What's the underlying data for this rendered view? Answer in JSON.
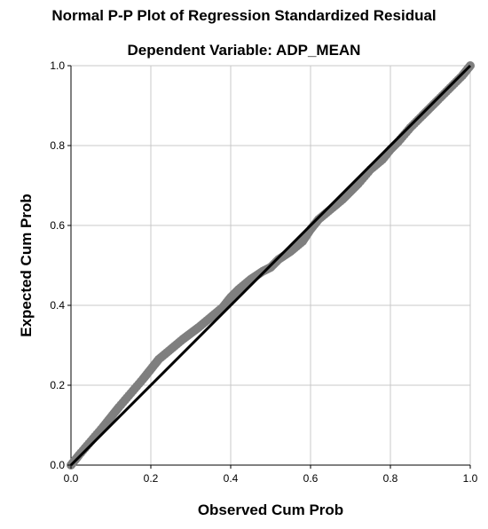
{
  "chart_data": {
    "type": "scatter",
    "title": "Normal P-P Plot of Regression Standardized Residual",
    "subtitle": "Dependent Variable: ADP_MEAN",
    "xlabel": "Observed Cum Prob",
    "ylabel": "Expected Cum Prob",
    "xlim": [
      0.0,
      1.0
    ],
    "ylim": [
      0.0,
      1.0
    ],
    "xticks": [
      "0.0",
      "0.2",
      "0.4",
      "0.6",
      "0.8",
      "1.0"
    ],
    "yticks": [
      "0.0",
      "0.2",
      "0.4",
      "0.6",
      "0.8",
      "1.0"
    ],
    "grid": true,
    "reference_line": {
      "x": [
        0.0,
        1.0
      ],
      "y": [
        0.0,
        1.0
      ]
    },
    "series": [
      {
        "x": [
          0.0,
          0.02,
          0.05,
          0.08,
          0.1,
          0.12,
          0.15,
          0.18,
          0.2,
          0.22,
          0.25,
          0.28,
          0.3,
          0.32,
          0.35,
          0.38,
          0.4,
          0.42,
          0.45,
          0.48,
          0.5,
          0.52,
          0.55,
          0.58,
          0.6,
          0.62,
          0.65,
          0.68,
          0.7,
          0.72,
          0.75,
          0.78,
          0.8,
          0.82,
          0.85,
          0.88,
          0.9,
          0.92,
          0.95,
          0.98,
          1.0
        ],
        "y": [
          0.0,
          0.025,
          0.06,
          0.095,
          0.12,
          0.145,
          0.18,
          0.215,
          0.24,
          0.265,
          0.29,
          0.315,
          0.33,
          0.345,
          0.37,
          0.395,
          0.42,
          0.44,
          0.465,
          0.485,
          0.495,
          0.515,
          0.535,
          0.56,
          0.59,
          0.615,
          0.64,
          0.665,
          0.685,
          0.705,
          0.74,
          0.765,
          0.79,
          0.81,
          0.845,
          0.875,
          0.895,
          0.915,
          0.945,
          0.975,
          1.0
        ],
        "color": "#7f7f7f"
      }
    ],
    "colors": {
      "grid": "#c8c8c8",
      "axis": "#000000",
      "reference": "#000000",
      "points": "#7f7f7f"
    }
  }
}
